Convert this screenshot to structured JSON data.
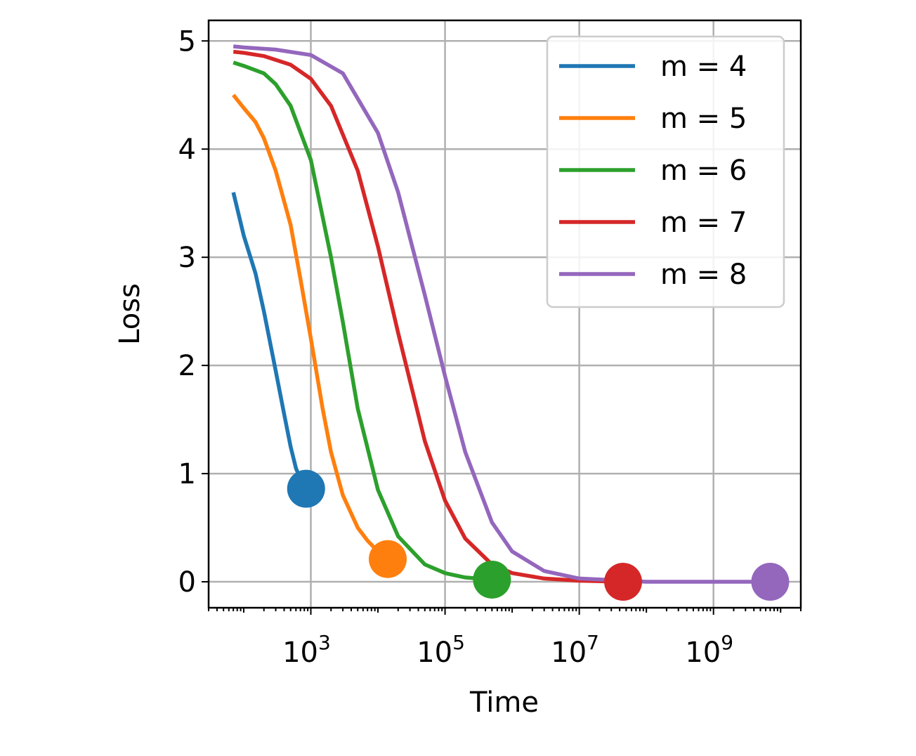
{
  "chart_data": {
    "type": "line",
    "title": "",
    "xlabel": "Time",
    "ylabel": "Loss",
    "xscale": "log",
    "xlim": [
      30,
      20000000000
    ],
    "ylim": [
      -0.24,
      5.19
    ],
    "grid": true,
    "legend_position": "top-right",
    "x_ticks": [
      {
        "value": 1000,
        "base": "10",
        "exp": "3"
      },
      {
        "value": 100000,
        "base": "10",
        "exp": "5"
      },
      {
        "value": 10000000,
        "base": "10",
        "exp": "7"
      },
      {
        "value": 1000000000,
        "base": "10",
        "exp": "9"
      }
    ],
    "y_ticks": [
      {
        "value": 0,
        "label": "0"
      },
      {
        "value": 1,
        "label": "1"
      },
      {
        "value": 2,
        "label": "2"
      },
      {
        "value": 3,
        "label": "3"
      },
      {
        "value": 4,
        "label": "4"
      },
      {
        "value": 5,
        "label": "5"
      }
    ],
    "series": [
      {
        "name": "m = 4",
        "color": "#1f77b4",
        "x": [
          70,
          100,
          150,
          200,
          300,
          400,
          500,
          600,
          700,
          850
        ],
        "y": [
          3.6,
          3.2,
          2.85,
          2.5,
          1.95,
          1.55,
          1.25,
          1.05,
          0.95,
          0.86
        ],
        "end_point": {
          "x": 850,
          "y": 0.86
        }
      },
      {
        "name": "m = 5",
        "color": "#ff7f0e",
        "x": [
          70,
          100,
          150,
          200,
          300,
          500,
          700,
          1000,
          1500,
          2000,
          3000,
          5000,
          7000,
          10000,
          14000
        ],
        "y": [
          4.5,
          4.38,
          4.25,
          4.1,
          3.8,
          3.3,
          2.8,
          2.25,
          1.6,
          1.2,
          0.8,
          0.5,
          0.38,
          0.28,
          0.21
        ],
        "end_point": {
          "x": 14000,
          "y": 0.21
        }
      },
      {
        "name": "m = 6",
        "color": "#2ca02c",
        "x": [
          70,
          100,
          200,
          300,
          500,
          1000,
          2000,
          3000,
          5000,
          10000,
          20000,
          50000,
          100000,
          200000,
          500000
        ],
        "y": [
          4.8,
          4.77,
          4.7,
          4.6,
          4.4,
          3.9,
          3.0,
          2.4,
          1.6,
          0.85,
          0.42,
          0.16,
          0.08,
          0.04,
          0.02
        ],
        "end_point": {
          "x": 500000,
          "y": 0.02
        }
      },
      {
        "name": "m = 7",
        "color": "#d62728",
        "x": [
          70,
          100,
          200,
          500,
          1000,
          2000,
          5000,
          10000,
          20000,
          50000,
          100000,
          200000,
          500000,
          1000000,
          3000000,
          10000000,
          45000000
        ],
        "y": [
          4.9,
          4.89,
          4.86,
          4.78,
          4.65,
          4.4,
          3.8,
          3.1,
          2.3,
          1.3,
          0.75,
          0.4,
          0.16,
          0.08,
          0.03,
          0.01,
          0.0
        ],
        "end_point": {
          "x": 45000000,
          "y": 0.0
        }
      },
      {
        "name": "m = 8",
        "color": "#9467bd",
        "x": [
          70,
          100,
          300,
          1000,
          3000,
          10000,
          20000,
          50000,
          100000,
          200000,
          500000,
          1000000,
          3000000,
          10000000,
          100000000,
          1000000000,
          7000000000
        ],
        "y": [
          4.95,
          4.94,
          4.92,
          4.87,
          4.7,
          4.15,
          3.6,
          2.65,
          1.9,
          1.2,
          0.55,
          0.28,
          0.1,
          0.03,
          0.0,
          0.0,
          0.0
        ],
        "end_point": {
          "x": 7000000000,
          "y": 0.0
        }
      }
    ]
  }
}
